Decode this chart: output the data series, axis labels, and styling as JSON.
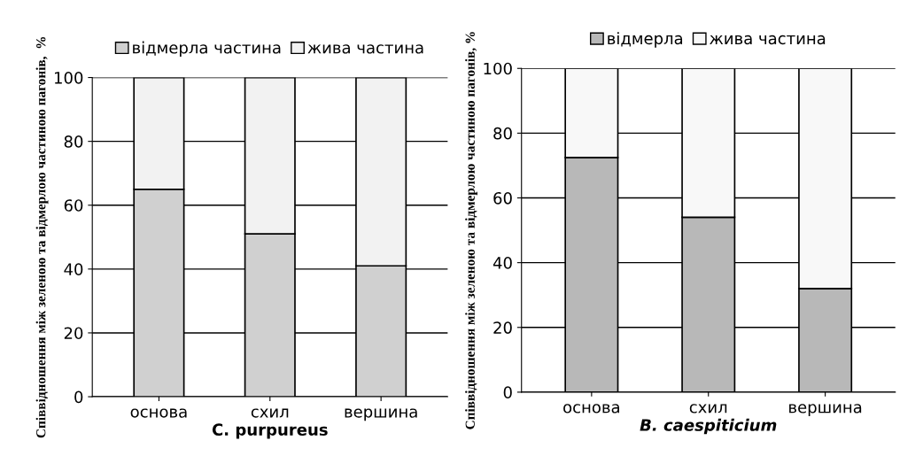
{
  "chart_data": [
    {
      "type": "bar",
      "stacked": true,
      "categories": [
        "основа",
        "схил",
        "вершина"
      ],
      "xlabel": "C. purpureus",
      "ylabel": "Співвідношення між зеленою та відмерлою частиною пагонів,  %",
      "ylim": [
        0,
        100
      ],
      "yticks": [
        0,
        20,
        40,
        60,
        80,
        100
      ],
      "grid": "y",
      "legend": "top",
      "series": [
        {
          "name": "відмерла частина",
          "color": "#d0d0d0",
          "values": [
            65,
            51,
            41
          ]
        },
        {
          "name": "жива частина",
          "color": "#f2f2f2",
          "values": [
            35,
            49,
            59
          ]
        }
      ]
    },
    {
      "type": "bar",
      "stacked": true,
      "categories": [
        "основа",
        "схил",
        "вершина"
      ],
      "xlabel": "B. caespiticium",
      "ylabel": "Співвідношення між зеленою та відмерлою частиною пагонів, %",
      "ylim": [
        0,
        100
      ],
      "yticks": [
        0,
        20,
        40,
        60,
        80,
        100
      ],
      "grid": "y",
      "legend": "top",
      "series": [
        {
          "name": "відмерла",
          "color": "#b8b8b8",
          "values": [
            72.5,
            54,
            32
          ]
        },
        {
          "name": "жива частина",
          "color": "#f8f8f8",
          "values": [
            27.5,
            46,
            68
          ]
        }
      ]
    }
  ]
}
